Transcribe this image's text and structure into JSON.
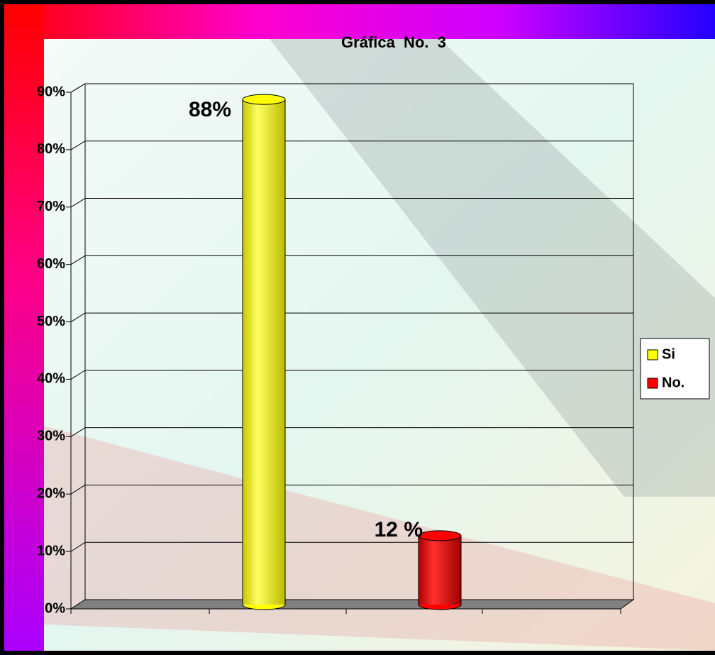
{
  "chart_data": {
    "type": "bar",
    "title": "Gráfica  No.  3",
    "categories": [
      null
    ],
    "series": [
      {
        "name": "Si",
        "color": "#ffff00",
        "values": [
          88
        ],
        "value_labels": [
          "88%"
        ]
      },
      {
        "name": "No.",
        "color": "#ff0000",
        "values": [
          12
        ],
        "value_labels": [
          "12 %"
        ]
      }
    ],
    "ylim": [
      0,
      90
    ],
    "yticks": [
      {
        "value": 0,
        "label": "0%"
      },
      {
        "value": 10,
        "label": "10%"
      },
      {
        "value": 20,
        "label": "20%"
      },
      {
        "value": 30,
        "label": "30%"
      },
      {
        "value": 40,
        "label": "40%"
      },
      {
        "value": 50,
        "label": "50%"
      },
      {
        "value": 60,
        "label": "60%"
      },
      {
        "value": 70,
        "label": "70%"
      },
      {
        "value": 80,
        "label": "80%"
      },
      {
        "value": 90,
        "label": "90%"
      }
    ],
    "grid": true,
    "legend": "right"
  }
}
